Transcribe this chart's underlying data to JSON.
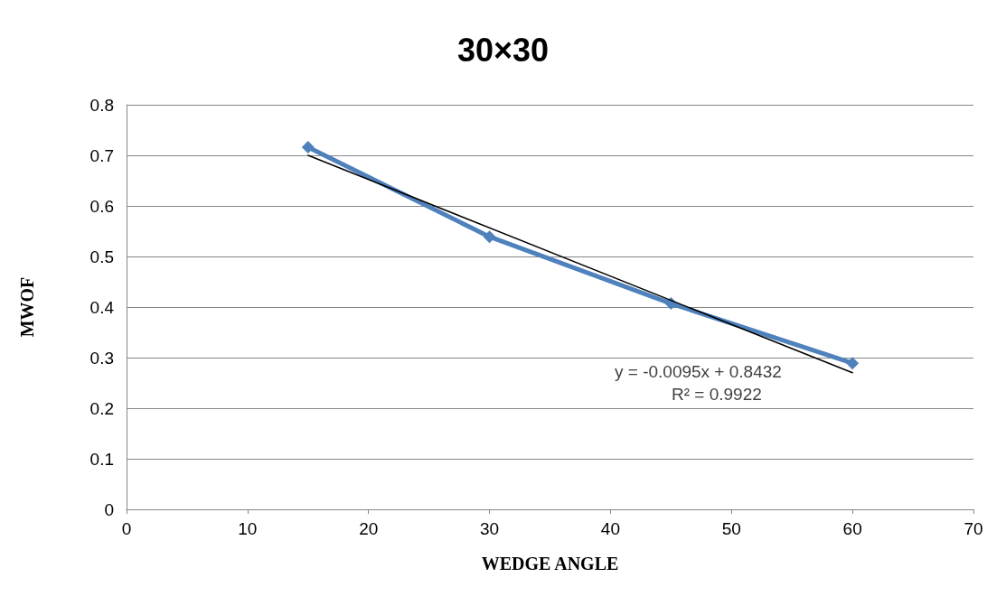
{
  "chart_data": {
    "type": "line",
    "title": "30×30",
    "xlabel": "WEDGE ANGLE",
    "ylabel": "MWOF",
    "xlim": [
      0,
      70
    ],
    "xticks": [
      0,
      10,
      20,
      30,
      40,
      50,
      60,
      70
    ],
    "ylim": [
      0,
      0.8
    ],
    "yticks": [
      0,
      0.1,
      0.2,
      0.3,
      0.4,
      0.5,
      0.6,
      0.7,
      0.8
    ],
    "grid": "y",
    "marker": "diamond",
    "line_style": "solid",
    "series": [
      {
        "color": "#4f81bd",
        "x": [
          15,
          30,
          45,
          60
        ],
        "values": [
          0.716,
          0.539,
          0.407,
          0.289
        ]
      },
      {
        "color": "#000000",
        "marker": "none",
        "x": [
          15,
          60
        ],
        "values": [
          0.7,
          0.27
        ]
      }
    ],
    "annotations": [
      "y = -0.0095x + 0.8432",
      "R² = 0.9922"
    ]
  }
}
